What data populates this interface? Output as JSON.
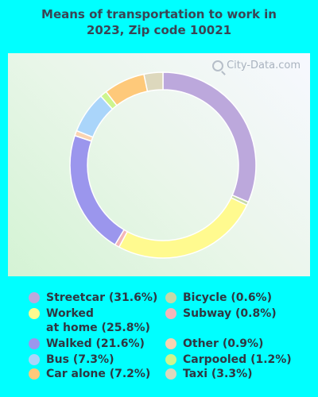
{
  "title_line1": "Means of transportation to work in",
  "title_line2": "2023, Zip code 10021",
  "watermark": "City-Data.com",
  "chart_data": {
    "type": "pie",
    "donut": true,
    "title": "Means of transportation to work in 2023, Zip code 10021",
    "categories": [
      "Streetcar",
      "Bicycle",
      "Worked at home",
      "Subway",
      "Walked",
      "Other",
      "Bus",
      "Carpooled",
      "Car alone",
      "Taxi"
    ],
    "values": [
      31.6,
      0.6,
      25.8,
      0.8,
      21.6,
      0.9,
      7.3,
      1.2,
      7.2,
      3.3
    ],
    "colors": [
      "#BCA8DC",
      "#C5D9A8",
      "#FFFA8F",
      "#F3B6B9",
      "#9B96ED",
      "#FAD3B1",
      "#AAD5FA",
      "#CDF58E",
      "#FEC97A",
      "#DDD8BD"
    ],
    "legend": [
      {
        "label": "Streetcar (31.6%)",
        "color": "#BCA8DC"
      },
      {
        "label": "Worked\nat home (25.8%)",
        "color": "#FFFA8F"
      },
      {
        "label": "Walked (21.6%)",
        "color": "#9B96ED"
      },
      {
        "label": "Bus (7.3%)",
        "color": "#AAD5FA"
      },
      {
        "label": "Car alone (7.2%)",
        "color": "#FEC97A"
      },
      {
        "label": "Bicycle (0.6%)",
        "color": "#C5D9A8"
      },
      {
        "label": "Subway (0.8%)",
        "color": "#F3B6B9"
      },
      {
        "label": "Other (0.9%)",
        "color": "#FAD3B1"
      },
      {
        "label": "Carpooled (1.2%)",
        "color": "#CDF58E"
      },
      {
        "label": "Taxi (3.3%)",
        "color": "#DDD8BD"
      }
    ]
  }
}
